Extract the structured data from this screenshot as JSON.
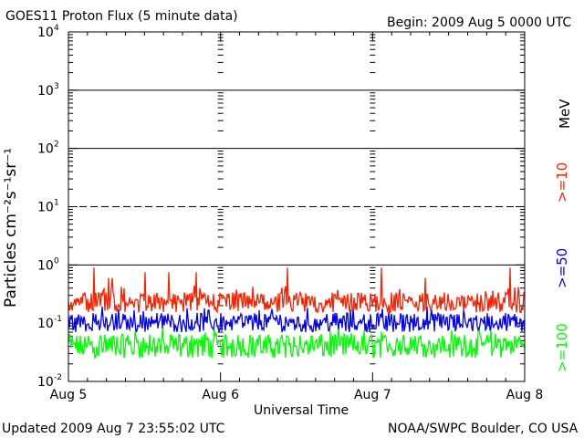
{
  "header": {
    "title": "GOES11 Proton Flux (5 minute data)",
    "begin": "Begin: 2009 Aug 5 0000 UTC"
  },
  "footer": {
    "updated": "Updated 2009 Aug  7 23:55:02 UTC",
    "credit": "NOAA/SWPC Boulder, CO USA"
  },
  "chart_data": {
    "type": "line",
    "title": "GOES11 Proton Flux (5 minute data)",
    "xlabel": "Universal Time",
    "ylabel": "Particles cm⁻²s⁻¹sr⁻¹",
    "yscale": "log",
    "ylim": [
      0.01,
      10000
    ],
    "xlim": [
      "2009-08-05 00:00",
      "2009-08-08 00:00"
    ],
    "x_ticks": [
      "Aug 5",
      "Aug 6",
      "Aug 7",
      "Aug 8"
    ],
    "y_ticks": [
      {
        "base": "10",
        "exp": "-2"
      },
      {
        "base": "10",
        "exp": "-1"
      },
      {
        "base": "10",
        "exp": "0"
      },
      {
        "base": "10",
        "exp": "1"
      },
      {
        "base": "10",
        "exp": "2"
      },
      {
        "base": "10",
        "exp": "3"
      },
      {
        "base": "10",
        "exp": "4"
      }
    ],
    "threshold_lines": [
      {
        "value": 1,
        "style": "solid"
      },
      {
        "value": 10,
        "style": "dashed"
      },
      {
        "value": 100,
        "style": "solid"
      },
      {
        "value": 1000,
        "style": "solid"
      }
    ],
    "unit_label": "MeV",
    "series": [
      {
        "name": ">=10",
        "color": "#ff2000",
        "baseline": 0.22,
        "noise_low": 0.15,
        "noise_high": 0.45,
        "spikes": [
          0.6,
          0.9,
          0.75
        ]
      },
      {
        "name": ">=50",
        "color": "#0000ff",
        "baseline": 0.1,
        "noise_low": 0.07,
        "noise_high": 0.2,
        "spikes": []
      },
      {
        "name": ">=100",
        "color": "#00ff00",
        "baseline": 0.04,
        "noise_low": 0.025,
        "noise_high": 0.09,
        "spikes": []
      }
    ]
  }
}
